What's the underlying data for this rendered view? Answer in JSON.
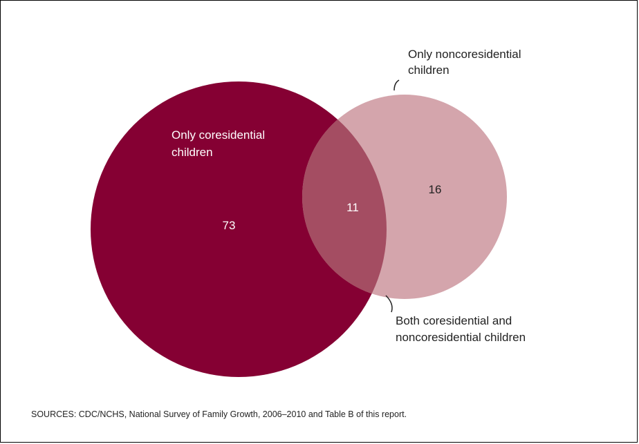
{
  "chart_data": {
    "type": "venn",
    "sets": [
      {
        "label_lines": [
          "Only coresidential",
          "children"
        ],
        "value": 73,
        "color": "#850033"
      },
      {
        "label_lines": [
          "Only noncoresidential",
          "children"
        ],
        "value": 16,
        "color": "#d4a5ac"
      }
    ],
    "intersection": {
      "label_lines": [
        "Both coresidential and",
        "noncoresidential children"
      ],
      "value": 11,
      "color": "#a44d62"
    }
  },
  "source": "SOURCES: CDC/NCHS, National Survey of Family Growth, 2006–2010 and Table B of this report."
}
